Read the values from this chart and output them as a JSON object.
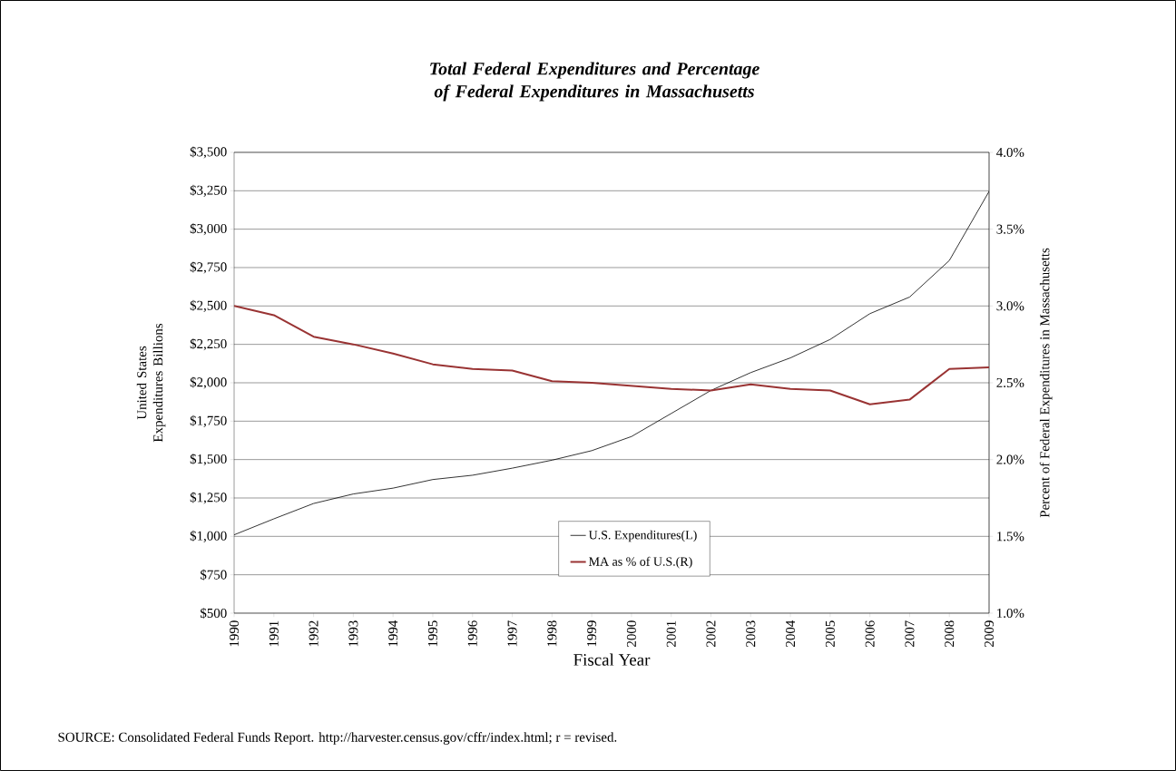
{
  "chart_data": {
    "type": "line",
    "title": "Total Federal Expenditures and Percentage of Federal Expenditures in Massachusetts",
    "xlabel": "Fiscal Year",
    "ylabel": "United States Expenditures Billions",
    "y2label": "Percent of Federal Expenditures in Massachusetts",
    "categories": [
      "1990",
      "1991",
      "1992",
      "1993",
      "1994",
      "1995",
      "1996",
      "1997",
      "1998",
      "1999",
      "2000",
      "2001",
      "2002",
      "2003",
      "2004",
      "2005",
      "2006",
      "2007",
      "2008",
      "2009"
    ],
    "series": [
      {
        "name": "U.S. Expenditures(L)",
        "color": "#000000",
        "values": [
          1010,
          1114,
          1214,
          1276,
          1314,
          1370,
          1398,
          1444,
          1496,
          1558,
          1650,
          1800,
          1950,
          2066,
          2162,
          2282,
          2450,
          2558,
          2796,
          3246
        ]
      },
      {
        "name": "MA as % of U.S.(R)",
        "color": "#993333",
        "axis": "y2",
        "values": [
          3.0,
          2.94,
          2.8,
          2.75,
          2.69,
          2.62,
          2.59,
          2.58,
          2.51,
          2.5,
          2.48,
          2.46,
          2.45,
          2.49,
          2.46,
          2.45,
          2.36,
          2.39,
          2.59,
          2.6
        ]
      }
    ],
    "ylim": [
      500,
      3500
    ],
    "yticks": [
      {
        "value": 500,
        "label": "$500"
      },
      {
        "value": 750,
        "label": "$750"
      },
      {
        "value": 1000,
        "label": "$1,000"
      },
      {
        "value": 1250,
        "label": "$1,250"
      },
      {
        "value": 1500,
        "label": "$1,500"
      },
      {
        "value": 1750,
        "label": "$1,750"
      },
      {
        "value": 2000,
        "label": "$2,000"
      },
      {
        "value": 2250,
        "label": "$2,250"
      },
      {
        "value": 2500,
        "label": "$2,500"
      },
      {
        "value": 2750,
        "label": "$2,750"
      },
      {
        "value": 3000,
        "label": "$3,000"
      },
      {
        "value": 3250,
        "label": "$3,250"
      },
      {
        "value": 3500,
        "label": "$3,500"
      }
    ],
    "y2lim": [
      1,
      4
    ],
    "y2ticks": [
      {
        "value": 1,
        "label": "1.0%"
      },
      {
        "value": 1.5,
        "label": "1.5%"
      },
      {
        "value": 2,
        "label": "2.0%"
      },
      {
        "value": 2.5,
        "label": "2.5%"
      },
      {
        "value": 3,
        "label": "3.0%"
      },
      {
        "value": 3.5,
        "label": "3.5%"
      },
      {
        "value": 4,
        "label": "4.0%"
      }
    ],
    "grid": "y",
    "legend": "bottom",
    "annotations": [
      "SOURCE:  Consolidated Federal Funds Report. http://harvester.census.gov/cffr/index.html; r = revised."
    ]
  }
}
